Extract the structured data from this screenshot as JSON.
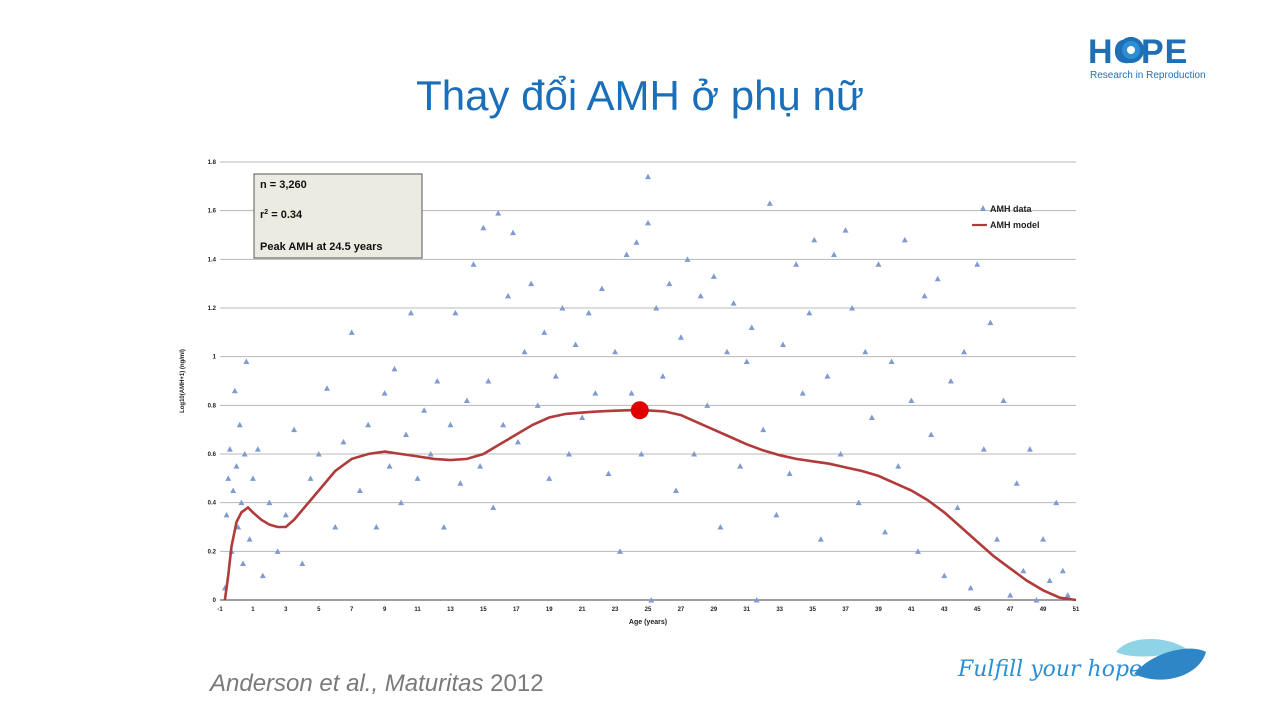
{
  "slide": {
    "title": "Thay đổi AMH ở phụ nữ",
    "logo_text": "HOPE",
    "logo_sub": "Research in Reproduction",
    "citation_authors": "Anderson et al., ",
    "citation_journal": "Maturitas",
    "citation_year": " 2012",
    "slogan": "Fulfill your hope"
  },
  "colors": {
    "title": "#1a6fb8",
    "points": "#7f9ccf",
    "model": "#b13a3a",
    "peak": "#e00000",
    "logo": "#1f6fb5"
  },
  "chart_data": {
    "type": "scatter",
    "xlabel": "Age (years)",
    "ylabel": "Log10(AMH+1) (ng/ml)",
    "xlim": [
      -1,
      51
    ],
    "ylim": [
      0,
      1.8
    ],
    "xticks": [
      "-1",
      "1",
      "3",
      "5",
      "7",
      "9",
      "11",
      "13",
      "15",
      "17",
      "19",
      "21",
      "23",
      "25",
      "27",
      "29",
      "31",
      "33",
      "35",
      "37",
      "39",
      "41",
      "43",
      "45",
      "47",
      "49",
      "51"
    ],
    "yticks": [
      "0",
      "0.2",
      "0.4",
      "0.6",
      "0.8",
      "1",
      "1.2",
      "1.4",
      "1.6",
      "1.8"
    ],
    "grid": true,
    "legend_position": "top-right",
    "annotation": {
      "n": "n = 3,260",
      "r2_prefix": "r",
      "r2_sup": "2",
      "r2_value": " = 0.34",
      "peak": "Peak AMH at 24.5 years"
    },
    "series": [
      {
        "name": "AMH data",
        "marker": "triangle",
        "points": [
          [
            -0.7,
            0.05
          ],
          [
            -0.6,
            0.35
          ],
          [
            -0.5,
            0.5
          ],
          [
            -0.4,
            0.62
          ],
          [
            -0.3,
            0.2
          ],
          [
            -0.2,
            0.45
          ],
          [
            -0.1,
            0.86
          ],
          [
            0.0,
            0.55
          ],
          [
            0.1,
            0.3
          ],
          [
            0.2,
            0.72
          ],
          [
            0.3,
            0.4
          ],
          [
            0.4,
            0.15
          ],
          [
            0.5,
            0.6
          ],
          [
            0.6,
            0.98
          ],
          [
            0.8,
            0.25
          ],
          [
            1.0,
            0.5
          ],
          [
            1.3,
            0.62
          ],
          [
            1.6,
            0.1
          ],
          [
            2.0,
            0.4
          ],
          [
            2.5,
            0.2
          ],
          [
            3.0,
            0.35
          ],
          [
            3.5,
            0.7
          ],
          [
            4.0,
            0.15
          ],
          [
            4.5,
            0.5
          ],
          [
            5.0,
            0.6
          ],
          [
            5.5,
            0.87
          ],
          [
            6.0,
            0.3
          ],
          [
            6.5,
            0.65
          ],
          [
            7.0,
            1.1
          ],
          [
            7.5,
            0.45
          ],
          [
            8.0,
            0.72
          ],
          [
            8.5,
            0.3
          ],
          [
            9.0,
            0.85
          ],
          [
            9.3,
            0.55
          ],
          [
            9.6,
            0.95
          ],
          [
            10.0,
            0.4
          ],
          [
            10.3,
            0.68
          ],
          [
            10.6,
            1.18
          ],
          [
            11.0,
            0.5
          ],
          [
            11.4,
            0.78
          ],
          [
            11.8,
            0.6
          ],
          [
            12.2,
            0.9
          ],
          [
            12.6,
            0.3
          ],
          [
            13.0,
            0.72
          ],
          [
            13.3,
            1.18
          ],
          [
            13.6,
            0.48
          ],
          [
            14.0,
            0.82
          ],
          [
            14.4,
            1.38
          ],
          [
            14.8,
            0.55
          ],
          [
            15.0,
            1.53
          ],
          [
            15.3,
            0.9
          ],
          [
            15.6,
            0.38
          ],
          [
            15.9,
            1.59
          ],
          [
            16.2,
            0.72
          ],
          [
            16.5,
            1.25
          ],
          [
            16.8,
            1.51
          ],
          [
            17.1,
            0.65
          ],
          [
            17.5,
            1.02
          ],
          [
            17.9,
            1.3
          ],
          [
            18.3,
            0.8
          ],
          [
            18.7,
            1.1
          ],
          [
            19.0,
            0.5
          ],
          [
            19.4,
            0.92
          ],
          [
            19.8,
            1.2
          ],
          [
            20.2,
            0.6
          ],
          [
            20.6,
            1.05
          ],
          [
            21.0,
            0.75
          ],
          [
            21.4,
            1.18
          ],
          [
            21.8,
            0.85
          ],
          [
            22.2,
            1.28
          ],
          [
            22.6,
            0.52
          ],
          [
            23.0,
            1.02
          ],
          [
            23.3,
            0.2
          ],
          [
            23.7,
            1.42
          ],
          [
            24.0,
            0.85
          ],
          [
            24.3,
            1.47
          ],
          [
            24.6,
            0.6
          ],
          [
            25.0,
            1.74
          ],
          [
            25.0,
            1.55
          ],
          [
            25.2,
            0.0
          ],
          [
            25.5,
            1.2
          ],
          [
            25.9,
            0.92
          ],
          [
            26.3,
            1.3
          ],
          [
            26.7,
            0.45
          ],
          [
            27.0,
            1.08
          ],
          [
            27.4,
            1.4
          ],
          [
            27.8,
            0.6
          ],
          [
            28.2,
            1.25
          ],
          [
            28.6,
            0.8
          ],
          [
            29.0,
            1.33
          ],
          [
            29.4,
            0.3
          ],
          [
            29.8,
            1.02
          ],
          [
            30.2,
            1.22
          ],
          [
            30.6,
            0.55
          ],
          [
            31.0,
            0.98
          ],
          [
            31.3,
            1.12
          ],
          [
            31.6,
            0.0
          ],
          [
            32.0,
            0.7
          ],
          [
            32.4,
            1.63
          ],
          [
            32.8,
            0.35
          ],
          [
            33.2,
            1.05
          ],
          [
            33.6,
            0.52
          ],
          [
            34.0,
            1.38
          ],
          [
            34.4,
            0.85
          ],
          [
            34.8,
            1.18
          ],
          [
            35.1,
            1.48
          ],
          [
            35.5,
            0.25
          ],
          [
            35.9,
            0.92
          ],
          [
            36.3,
            1.42
          ],
          [
            36.7,
            0.6
          ],
          [
            37.0,
            1.52
          ],
          [
            37.4,
            1.2
          ],
          [
            37.8,
            0.4
          ],
          [
            38.2,
            1.02
          ],
          [
            38.6,
            0.75
          ],
          [
            39.0,
            1.38
          ],
          [
            39.4,
            0.28
          ],
          [
            39.8,
            0.98
          ],
          [
            40.2,
            0.55
          ],
          [
            40.6,
            1.48
          ],
          [
            41.0,
            0.82
          ],
          [
            41.4,
            0.2
          ],
          [
            41.8,
            1.25
          ],
          [
            42.2,
            0.68
          ],
          [
            42.6,
            1.32
          ],
          [
            43.0,
            0.1
          ],
          [
            43.4,
            0.9
          ],
          [
            43.8,
            0.38
          ],
          [
            44.2,
            1.02
          ],
          [
            44.6,
            0.05
          ],
          [
            45.0,
            1.38
          ],
          [
            45.4,
            0.62
          ],
          [
            45.8,
            1.14
          ],
          [
            46.2,
            0.25
          ],
          [
            46.6,
            0.82
          ],
          [
            47.0,
            0.02
          ],
          [
            47.4,
            0.48
          ],
          [
            47.8,
            0.12
          ],
          [
            48.2,
            0.62
          ],
          [
            48.6,
            0.0
          ],
          [
            49.0,
            0.25
          ],
          [
            49.4,
            0.08
          ],
          [
            49.8,
            0.4
          ],
          [
            50.2,
            0.12
          ],
          [
            50.5,
            0.02
          ]
        ]
      },
      {
        "name": "AMH model",
        "marker": "line",
        "points": [
          [
            -0.7,
            0.0
          ],
          [
            -0.5,
            0.1
          ],
          [
            -0.3,
            0.22
          ],
          [
            0.0,
            0.32
          ],
          [
            0.3,
            0.36
          ],
          [
            0.7,
            0.38
          ],
          [
            1.0,
            0.36
          ],
          [
            1.5,
            0.33
          ],
          [
            2.0,
            0.31
          ],
          [
            2.5,
            0.3
          ],
          [
            3.0,
            0.3
          ],
          [
            3.5,
            0.33
          ],
          [
            4.0,
            0.37
          ],
          [
            5.0,
            0.45
          ],
          [
            6.0,
            0.53
          ],
          [
            7.0,
            0.58
          ],
          [
            8.0,
            0.6
          ],
          [
            9.0,
            0.61
          ],
          [
            10.0,
            0.6
          ],
          [
            11.0,
            0.59
          ],
          [
            12.0,
            0.58
          ],
          [
            13.0,
            0.575
          ],
          [
            14.0,
            0.58
          ],
          [
            15.0,
            0.6
          ],
          [
            16.0,
            0.64
          ],
          [
            17.0,
            0.68
          ],
          [
            18.0,
            0.72
          ],
          [
            19.0,
            0.75
          ],
          [
            20.0,
            0.765
          ],
          [
            21.0,
            0.77
          ],
          [
            22.0,
            0.775
          ],
          [
            23.0,
            0.778
          ],
          [
            24.0,
            0.78
          ],
          [
            24.5,
            0.78
          ],
          [
            25.0,
            0.779
          ],
          [
            26.0,
            0.775
          ],
          [
            27.0,
            0.76
          ],
          [
            28.0,
            0.73
          ],
          [
            29.0,
            0.7
          ],
          [
            30.0,
            0.67
          ],
          [
            31.0,
            0.64
          ],
          [
            32.0,
            0.615
          ],
          [
            33.0,
            0.595
          ],
          [
            34.0,
            0.58
          ],
          [
            35.0,
            0.57
          ],
          [
            36.0,
            0.56
          ],
          [
            37.0,
            0.545
          ],
          [
            38.0,
            0.53
          ],
          [
            39.0,
            0.51
          ],
          [
            40.0,
            0.48
          ],
          [
            41.0,
            0.45
          ],
          [
            42.0,
            0.41
          ],
          [
            43.0,
            0.36
          ],
          [
            44.0,
            0.3
          ],
          [
            45.0,
            0.24
          ],
          [
            46.0,
            0.18
          ],
          [
            47.0,
            0.13
          ],
          [
            48.0,
            0.08
          ],
          [
            49.0,
            0.04
          ],
          [
            50.0,
            0.01
          ],
          [
            51.0,
            0.0
          ]
        ]
      }
    ],
    "peak_point": [
      24.5,
      0.78
    ]
  }
}
